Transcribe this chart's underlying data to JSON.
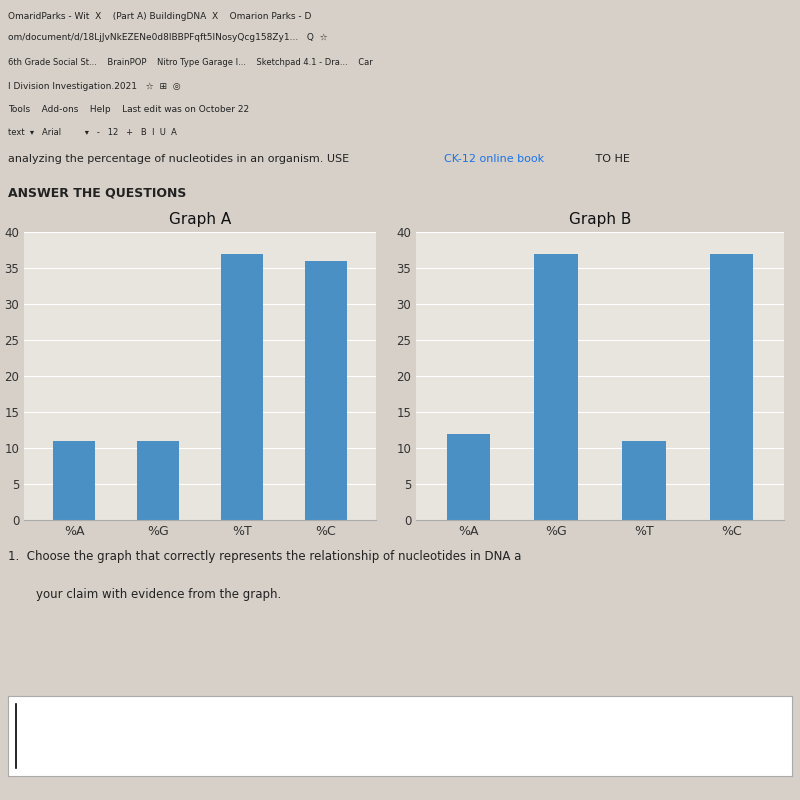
{
  "graph_a": {
    "title": "Graph A",
    "categories": [
      "%A",
      "%G",
      "%T",
      "%C"
    ],
    "values": [
      11,
      11,
      37,
      36
    ],
    "bar_color": "#4a90c4",
    "ylim": [
      0,
      40
    ],
    "yticks": [
      0,
      5,
      10,
      15,
      20,
      25,
      30,
      35,
      40
    ]
  },
  "graph_b": {
    "title": "Graph B",
    "categories": [
      "%A",
      "%G",
      "%T",
      "%C"
    ],
    "values": [
      12,
      37,
      11,
      37
    ],
    "bar_color": "#4a90c4",
    "ylim": [
      0,
      40
    ],
    "yticks": [
      0,
      5,
      10,
      15,
      20,
      25,
      30,
      35,
      40
    ]
  },
  "background_color": "#d6d0c8",
  "chart_bg": "#e8e4de",
  "figsize": [
    8.0,
    8.0
  ],
  "dpi": 100
}
